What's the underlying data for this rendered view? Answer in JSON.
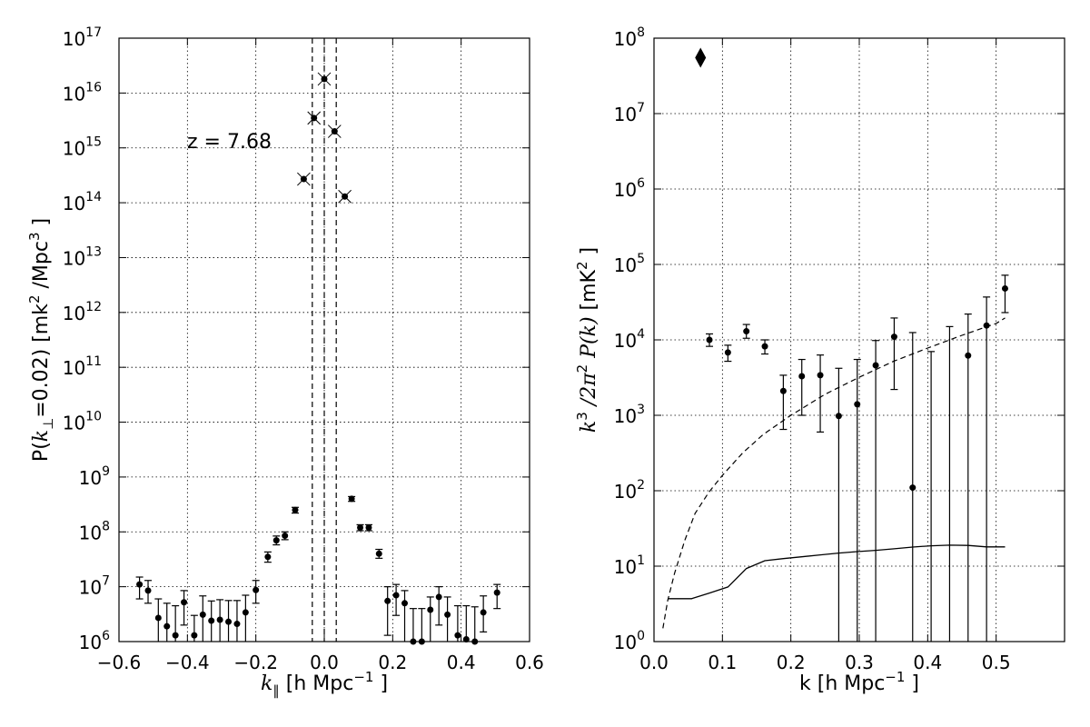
{
  "chart_data": [
    {
      "type": "scatter",
      "panel": "left",
      "xlabel_prefix": "k",
      "xlabel_sub": "∥",
      "xlabel_suffix": " [h Mpc",
      "xlabel_sup": "−1",
      "xlabel_end": " ]",
      "ylabel_a": "P(",
      "ylabel_k": "k",
      "ylabel_sub": "⊥",
      "ylabel_b": "=0.02) [mk",
      "ylabel_sup1": "2",
      "ylabel_c": " /Mpc",
      "ylabel_sup2": "3",
      "ylabel_d": " ]",
      "annotation": "z = 7.68",
      "xlim": [
        -0.6,
        0.6
      ],
      "ylim": [
        1000000.0,
        1e+17
      ],
      "yscale": "log",
      "grid": true,
      "xticks": [
        "−0.6",
        "−0.4",
        "−0.2",
        "0.0",
        "0.2",
        "0.4",
        "0.6"
      ],
      "yticks_base": "10",
      "yticks_exp": [
        "6",
        "7",
        "8",
        "9",
        "10",
        "11",
        "12",
        "13",
        "14",
        "15",
        "16",
        "17"
      ],
      "vlines_dashed": [
        -0.035,
        0.0,
        0.035
      ],
      "points": [
        {
          "x": -0.54,
          "y": 11000000.0,
          "lo": 6000000.0,
          "hi": 15000000.0
        },
        {
          "x": -0.515,
          "y": 8500000.0,
          "lo": 5000000.0,
          "hi": 13000000.0
        },
        {
          "x": -0.485,
          "y": 2700000.0,
          "lo": 1000000.0,
          "hi": 6000000.0
        },
        {
          "x": -0.46,
          "y": 1900000.0,
          "lo": 1000000.0,
          "hi": 5000000.0
        },
        {
          "x": -0.435,
          "y": 1300000.0,
          "lo": 1000000.0,
          "hi": 4500000.0
        },
        {
          "x": -0.41,
          "y": 5200000.0,
          "lo": 2000000.0,
          "hi": 8500000.0
        },
        {
          "x": -0.38,
          "y": 1300000.0,
          "lo": 1000000.0,
          "hi": 3000000.0
        },
        {
          "x": -0.355,
          "y": 3100000.0,
          "lo": 1000000.0,
          "hi": 6800000.0
        },
        {
          "x": -0.33,
          "y": 2400000.0,
          "lo": 1000000.0,
          "hi": 5500000.0
        },
        {
          "x": -0.305,
          "y": 2500000.0,
          "lo": 1000000.0,
          "hi": 5800000.0
        },
        {
          "x": -0.28,
          "y": 2300000.0,
          "lo": 1000000.0,
          "hi": 5600000.0
        },
        {
          "x": -0.255,
          "y": 2100000.0,
          "lo": 1000000.0,
          "hi": 5600000.0
        },
        {
          "x": -0.23,
          "y": 3400000.0,
          "lo": 1000000.0,
          "hi": 7000000.0
        },
        {
          "x": -0.2,
          "y": 8700000.0,
          "lo": 5000000.0,
          "hi": 13000000.0
        },
        {
          "x": -0.165,
          "y": 35000000.0,
          "lo": 28000000.0,
          "hi": 43000000.0
        },
        {
          "x": -0.14,
          "y": 70000000.0,
          "lo": 58000000.0,
          "hi": 84000000.0
        },
        {
          "x": -0.115,
          "y": 85000000.0,
          "lo": 72000000.0,
          "hi": 100000000.0
        },
        {
          "x": -0.085,
          "y": 250000000.0,
          "lo": 220000000.0,
          "hi": 280000000.0
        },
        {
          "x": 0.08,
          "y": 400000000.0,
          "lo": 360000000.0,
          "hi": 440000000.0
        },
        {
          "x": 0.105,
          "y": 120000000.0,
          "lo": 105000000.0,
          "hi": 135000000.0
        },
        {
          "x": 0.13,
          "y": 120000000.0,
          "lo": 105000000.0,
          "hi": 135000000.0
        },
        {
          "x": 0.16,
          "y": 40000000.0,
          "lo": 33000000.0,
          "hi": 48000000.0
        },
        {
          "x": 0.185,
          "y": 5500000.0,
          "lo": 1300000.0,
          "hi": 10000000.0
        },
        {
          "x": 0.21,
          "y": 7000000.0,
          "lo": 3000000.0,
          "hi": 11000000.0
        },
        {
          "x": 0.235,
          "y": 5000000.0,
          "lo": 1000000.0,
          "hi": 8500000.0
        },
        {
          "x": 0.26,
          "y": 1000000.0,
          "lo": 1000000.0,
          "hi": 4000000.0
        },
        {
          "x": 0.285,
          "y": 1000000.0,
          "lo": 1000000.0,
          "hi": 4000000.0
        },
        {
          "x": 0.31,
          "y": 3800000.0,
          "lo": 1000000.0,
          "hi": 6500000.0
        },
        {
          "x": 0.335,
          "y": 6500000.0,
          "lo": 2000000.0,
          "hi": 10000000.0
        },
        {
          "x": 0.36,
          "y": 3100000.0,
          "lo": 1000000.0,
          "hi": 6500000.0
        },
        {
          "x": 0.39,
          "y": 1300000.0,
          "lo": 1000000.0,
          "hi": 4500000.0
        },
        {
          "x": 0.415,
          "y": 1100000.0,
          "lo": 1000000.0,
          "hi": 4500000.0
        },
        {
          "x": 0.44,
          "y": 1000000.0,
          "lo": 1000000.0,
          "hi": 4300000.0
        },
        {
          "x": 0.465,
          "y": 3400000.0,
          "lo": 1500000.0,
          "hi": 6800000.0
        },
        {
          "x": 0.505,
          "y": 7800000.0,
          "lo": 4000000.0,
          "hi": 11000000.0
        }
      ],
      "x_markers": [
        {
          "x": -0.06,
          "y": 270000000000000.0
        },
        {
          "x": -0.03,
          "y": 3500000000000000.0
        },
        {
          "x": 0.0,
          "y": 1.8e+16
        },
        {
          "x": 0.03,
          "y": 2000000000000000.0
        },
        {
          "x": 0.06,
          "y": 130000000000000.0
        }
      ]
    },
    {
      "type": "scatter",
      "panel": "right",
      "xlabel": "k [h Mpc",
      "xlabel_sup": "−1",
      "xlabel_end": " ]",
      "ylabel_k": "k",
      "ylabel_sup3": "3",
      "ylabel_mid": " /2π",
      "ylabel_sup2": "2",
      "ylabel_p": " P(k)",
      "ylabel_unit": " [mK",
      "ylabel_unit_sup": "2",
      "ylabel_end": " ]",
      "xlim": [
        0.0,
        0.6
      ],
      "ylim": [
        1,
        100000000.0
      ],
      "yscale": "log",
      "grid": true,
      "xticks": [
        "0.0",
        "0.1",
        "0.2",
        "0.3",
        "0.4",
        "0.5"
      ],
      "yticks_base": "10",
      "yticks_exp": [
        "0",
        "1",
        "2",
        "3",
        "4",
        "5",
        "6",
        "7",
        "8"
      ],
      "diamond_marker": {
        "x": 0.068,
        "y": 55000000.0
      },
      "points": [
        {
          "x": 0.081,
          "y": 10000,
          "lo": 8200,
          "hi": 12000
        },
        {
          "x": 0.108,
          "y": 6800,
          "lo": 5200,
          "hi": 8500
        },
        {
          "x": 0.135,
          "y": 13000,
          "lo": 10500,
          "hi": 16000
        },
        {
          "x": 0.162,
          "y": 8200,
          "lo": 6500,
          "hi": 10000
        },
        {
          "x": 0.189,
          "y": 2100,
          "lo": 650,
          "hi": 3400
        },
        {
          "x": 0.216,
          "y": 3300,
          "lo": 1000,
          "hi": 5500
        },
        {
          "x": 0.243,
          "y": 3400,
          "lo": 600,
          "hi": 6300
        },
        {
          "x": 0.27,
          "y": 980,
          "lo": 1,
          "hi": 4200
        },
        {
          "x": 0.297,
          "y": 1400,
          "lo": 1,
          "hi": 5500
        },
        {
          "x": 0.324,
          "y": 4600,
          "lo": 1,
          "hi": 9800
        },
        {
          "x": 0.351,
          "y": 11000,
          "lo": 2200,
          "hi": 19500
        },
        {
          "x": 0.378,
          "y": 110,
          "lo": 1,
          "hi": 12500
        },
        {
          "x": 0.405,
          "y": 1,
          "lo": 1,
          "hi": 7000
        },
        {
          "x": 0.432,
          "y": 1,
          "lo": 1,
          "hi": 15000
        },
        {
          "x": 0.459,
          "y": 6200,
          "lo": 1,
          "hi": 22000
        },
        {
          "x": 0.486,
          "y": 15500,
          "lo": 1,
          "hi": 37000
        },
        {
          "x": 0.513,
          "y": 48000,
          "lo": 23000,
          "hi": 72000
        }
      ],
      "dashed_curve": [
        {
          "x": 0.013,
          "y": 1.5
        },
        {
          "x": 0.02,
          "y": 3.5
        },
        {
          "x": 0.03,
          "y": 8
        },
        {
          "x": 0.045,
          "y": 22
        },
        {
          "x": 0.06,
          "y": 50
        },
        {
          "x": 0.08,
          "y": 95
        },
        {
          "x": 0.1,
          "y": 160
        },
        {
          "x": 0.13,
          "y": 320
        },
        {
          "x": 0.16,
          "y": 560
        },
        {
          "x": 0.2,
          "y": 1000
        },
        {
          "x": 0.25,
          "y": 1900
        },
        {
          "x": 0.3,
          "y": 3200
        },
        {
          "x": 0.35,
          "y": 5200
        },
        {
          "x": 0.4,
          "y": 7800
        },
        {
          "x": 0.45,
          "y": 11500
        },
        {
          "x": 0.5,
          "y": 16500
        },
        {
          "x": 0.513,
          "y": 19500
        }
      ],
      "solid_curve": [
        {
          "x": 0.02,
          "y": 3.7
        },
        {
          "x": 0.055,
          "y": 3.7
        },
        {
          "x": 0.081,
          "y": 4.4
        },
        {
          "x": 0.108,
          "y": 5.3
        },
        {
          "x": 0.135,
          "y": 9.3
        },
        {
          "x": 0.162,
          "y": 11.8
        },
        {
          "x": 0.189,
          "y": 12.6
        },
        {
          "x": 0.216,
          "y": 13.3
        },
        {
          "x": 0.243,
          "y": 14.1
        },
        {
          "x": 0.27,
          "y": 14.9
        },
        {
          "x": 0.297,
          "y": 15.6
        },
        {
          "x": 0.324,
          "y": 16.2
        },
        {
          "x": 0.351,
          "y": 17.0
        },
        {
          "x": 0.378,
          "y": 17.9
        },
        {
          "x": 0.405,
          "y": 18.6
        },
        {
          "x": 0.432,
          "y": 19.0
        },
        {
          "x": 0.459,
          "y": 18.8
        },
        {
          "x": 0.486,
          "y": 18.0
        },
        {
          "x": 0.513,
          "y": 18.0
        }
      ]
    }
  ]
}
